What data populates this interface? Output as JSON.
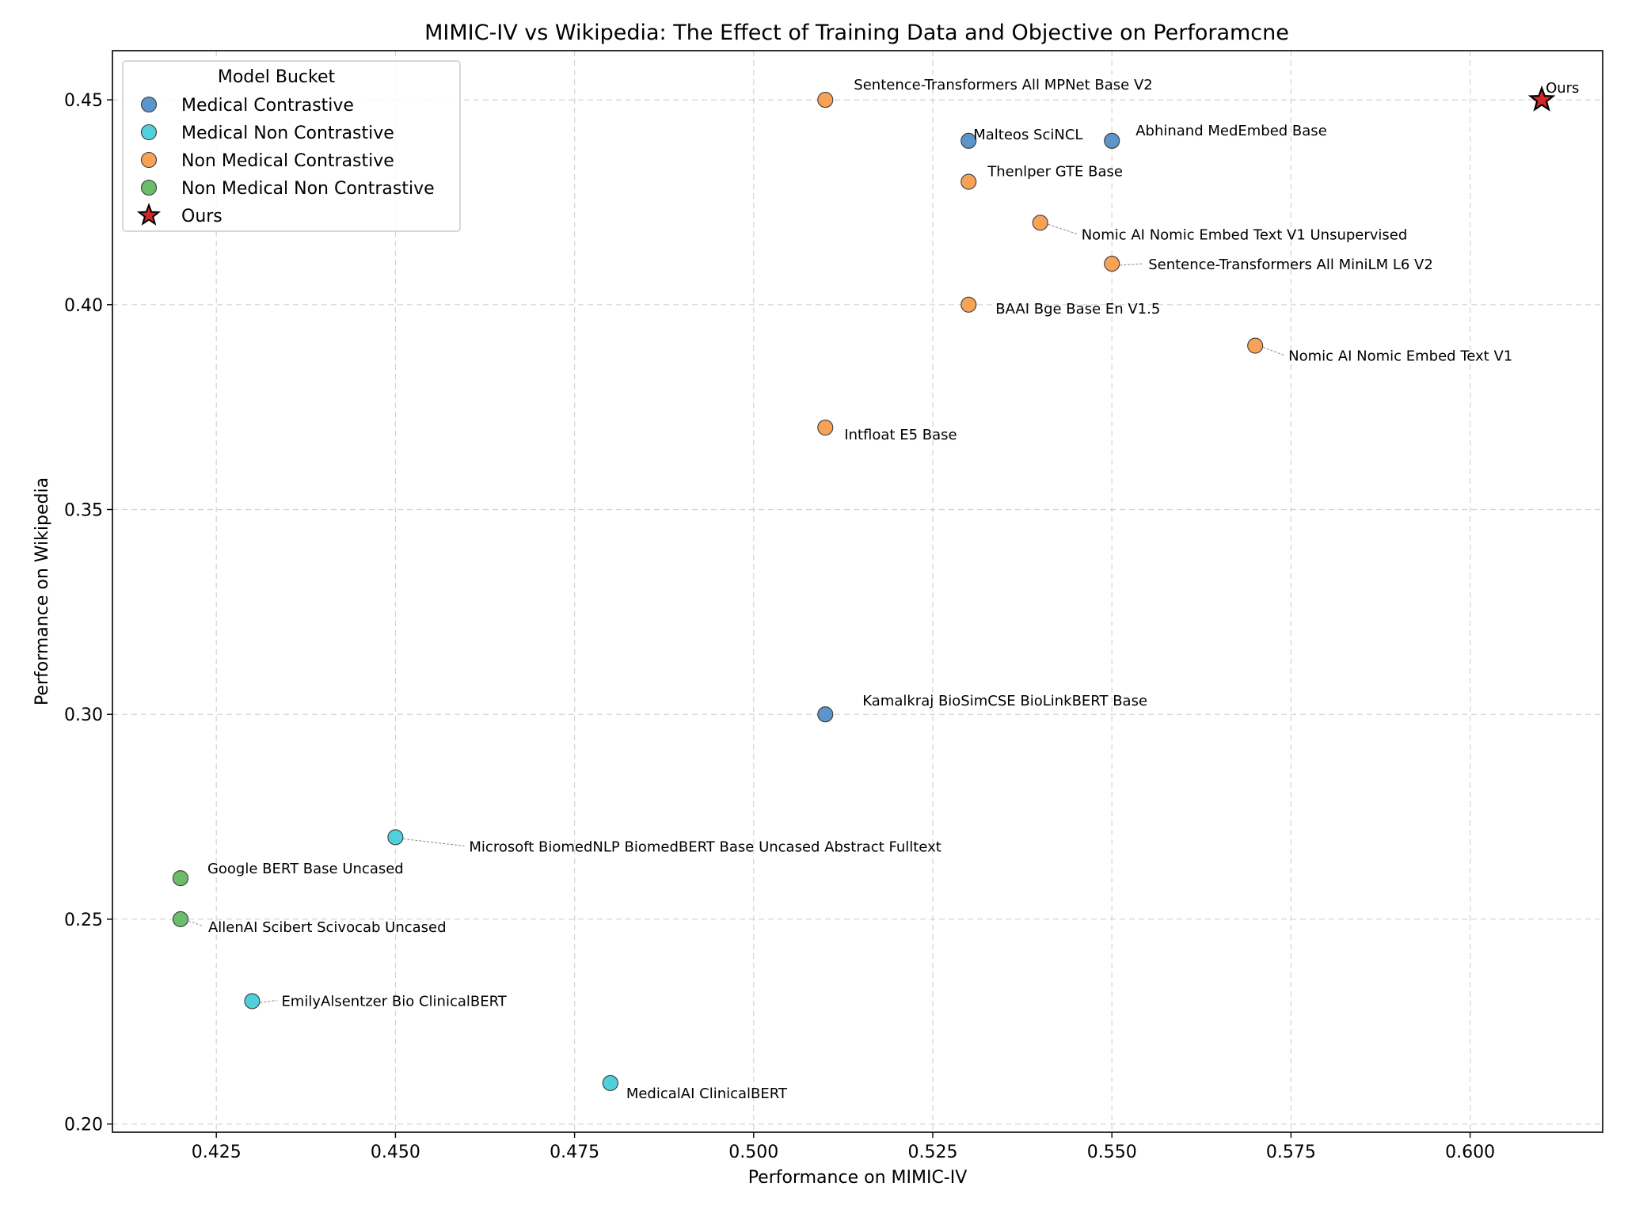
{
  "chart_data": {
    "type": "scatter",
    "title": "MIMIC-IV vs Wikipedia: The Effect of Training Data and Objective on Perforamcne",
    "xlabel": "Performance on MIMIC-IV",
    "ylabel": "Performance on Wikipedia",
    "xlim": [
      0.4105,
      0.6185
    ],
    "ylim": [
      0.198,
      0.462
    ],
    "xticks": [
      "0.425",
      "0.450",
      "0.475",
      "0.500",
      "0.525",
      "0.550",
      "0.575",
      "0.600"
    ],
    "yticks": [
      "0.20",
      "0.25",
      "0.30",
      "0.35",
      "0.40",
      "0.45"
    ],
    "grid": true,
    "legend_position": "top-left",
    "legend_title": "Model Bucket",
    "series": [
      {
        "name": "Medical Contrastive",
        "color": "#5b95c9",
        "marker": "circle",
        "points": [
          {
            "x": 0.53,
            "y": 0.44,
            "label": "Malteos SciNCL"
          },
          {
            "x": 0.55,
            "y": 0.44,
            "label": "Abhinand MedEmbed Base"
          },
          {
            "x": 0.51,
            "y": 0.3,
            "label": "Kamalkraj BioSimCSE BioLinkBERT Base"
          }
        ]
      },
      {
        "name": "Medical Non Contrastive",
        "color": "#4fd0da",
        "marker": "circle",
        "points": [
          {
            "x": 0.45,
            "y": 0.27,
            "label": "Microsoft BiomedNLP BiomedBERT Base Uncased Abstract Fulltext"
          },
          {
            "x": 0.43,
            "y": 0.23,
            "label": "EmilyAlsentzer Bio ClinicalBERT"
          },
          {
            "x": 0.48,
            "y": 0.21,
            "label": "MedicalAI ClinicalBERT"
          }
        ]
      },
      {
        "name": "Non Medical Contrastive",
        "color": "#f7a257",
        "marker": "circle",
        "points": [
          {
            "x": 0.51,
            "y": 0.45,
            "label": "Sentence-Transformers All MPNet Base V2"
          },
          {
            "x": 0.53,
            "y": 0.43,
            "label": "Thenlper GTE Base"
          },
          {
            "x": 0.54,
            "y": 0.42,
            "label": "Nomic AI Nomic Embed Text V1 Unsupervised"
          },
          {
            "x": 0.55,
            "y": 0.41,
            "label": "Sentence-Transformers All MiniLM L6 V2"
          },
          {
            "x": 0.53,
            "y": 0.4,
            "label": "BAAI Bge Base En V1.5"
          },
          {
            "x": 0.57,
            "y": 0.39,
            "label": "Nomic AI Nomic Embed Text V1"
          },
          {
            "x": 0.51,
            "y": 0.37,
            "label": "Intfloat E5 Base"
          }
        ]
      },
      {
        "name": "Non Medical Non Contrastive",
        "color": "#6bbd6b",
        "marker": "circle",
        "points": [
          {
            "x": 0.42,
            "y": 0.26,
            "label": "Google BERT Base Uncased"
          },
          {
            "x": 0.42,
            "y": 0.25,
            "label": "AllenAI Scibert Scivocab Uncased"
          }
        ]
      },
      {
        "name": "Ours",
        "color": "#d62728",
        "marker": "star",
        "points": [
          {
            "x": 0.61,
            "y": 0.45,
            "label": "Ours"
          }
        ]
      }
    ]
  }
}
